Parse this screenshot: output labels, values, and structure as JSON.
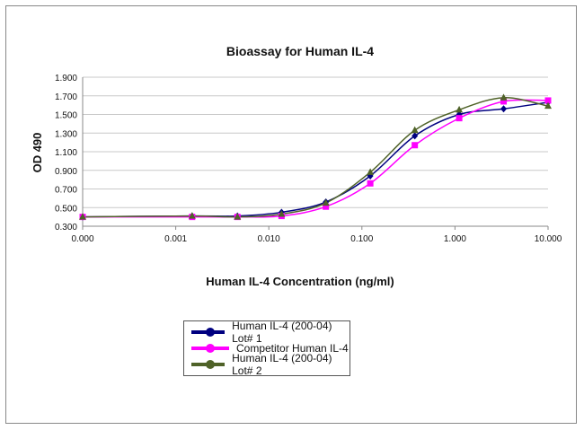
{
  "chart_data": {
    "type": "line",
    "title": "Bioassay for Human IL-4",
    "xlabel": "Human IL-4 Concentration (ng/ml)",
    "ylabel": "OD 490",
    "x_scale": "log",
    "xlim": [
      0.0001,
      10
    ],
    "ylim": [
      0.3,
      1.9
    ],
    "x_tick_labels": [
      "0.000",
      "0.001",
      "0.010",
      "0.100",
      "1.000",
      "10.000"
    ],
    "x_tick_values": [
      0.0001,
      0.001,
      0.01,
      0.1,
      1,
      10
    ],
    "y_tick_labels": [
      "0.300",
      "0.500",
      "0.700",
      "0.900",
      "1.100",
      "1.300",
      "1.500",
      "1.700",
      "1.900"
    ],
    "y_tick_values": [
      0.3,
      0.5,
      0.7,
      0.9,
      1.1,
      1.3,
      1.5,
      1.7,
      1.9
    ],
    "grid": "horizontal",
    "legend_position": "bottom",
    "x": [
      0.0001,
      0.0015,
      0.0046,
      0.0137,
      0.041,
      0.123,
      0.37,
      1.11,
      3.33,
      10
    ],
    "series": [
      {
        "name": "Human IL-4 (200-04) Lot# 1",
        "color": "#000080",
        "marker": "diamond",
        "values": [
          0.4,
          0.41,
          0.41,
          0.45,
          0.56,
          0.84,
          1.27,
          1.5,
          1.56,
          1.63
        ]
      },
      {
        "name": "Competitor Human IL-4",
        "color": "#ff00ff",
        "marker": "square",
        "values": [
          0.4,
          0.4,
          0.4,
          0.41,
          0.51,
          0.76,
          1.17,
          1.46,
          1.64,
          1.65
        ]
      },
      {
        "name": "Human IL-4 (200-04) Lot# 2",
        "color": "#4f6228",
        "marker": "triangle",
        "values": [
          0.4,
          0.41,
          0.4,
          0.43,
          0.55,
          0.88,
          1.33,
          1.55,
          1.68,
          1.59
        ]
      }
    ]
  }
}
